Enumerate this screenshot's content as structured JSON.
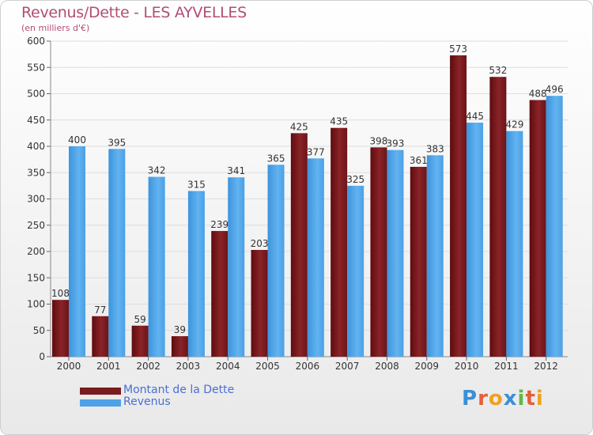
{
  "header": {
    "title": "Revenus/Dette - LES AYVELLES",
    "subtitle": "(en milliers d'€)"
  },
  "chart_data": {
    "type": "bar",
    "categories": [
      "2000",
      "2001",
      "2002",
      "2003",
      "2004",
      "2005",
      "2006",
      "2007",
      "2008",
      "2009",
      "2010",
      "2011",
      "2012"
    ],
    "series": [
      {
        "name": "Montant de la Dette",
        "color": "#7a1b1f",
        "values": [
          108,
          77,
          59,
          39,
          239,
          203,
          425,
          435,
          398,
          361,
          573,
          532,
          488
        ]
      },
      {
        "name": "Revenus",
        "color": "#4ea3e6",
        "values": [
          400,
          395,
          342,
          315,
          341,
          365,
          377,
          325,
          393,
          383,
          445,
          429,
          496
        ]
      }
    ],
    "ylim": [
      0,
      600
    ],
    "yticks": [
      0,
      50,
      100,
      150,
      200,
      250,
      300,
      350,
      400,
      450,
      500,
      550,
      600
    ],
    "grid": true,
    "legend_position": "bottom-left"
  },
  "legend": {
    "items": [
      {
        "label": "Montant de la Dette",
        "color": "#7a1b1f"
      },
      {
        "label": "Revenus",
        "color": "#4ea3e6"
      }
    ]
  },
  "logo": {
    "letters": [
      "P",
      "r",
      "o",
      "x",
      "i",
      "t",
      "i"
    ],
    "colors": [
      "#3a8fd8",
      "#e2603a",
      "#f0a020",
      "#3a8fd8",
      "#5db84a",
      "#e2603a",
      "#f0a020"
    ]
  }
}
